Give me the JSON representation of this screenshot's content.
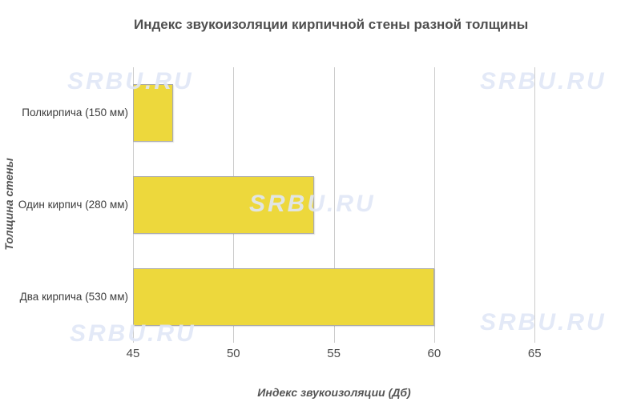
{
  "chart_data": {
    "type": "bar",
    "orientation": "horizontal",
    "title": "Индекс звукоизоляции кирпичной стены разной толщины",
    "xlabel": "Индекс звукоизоляции (Дб)",
    "ylabel": "Толщина стены",
    "categories": [
      "Полкирпича (150 мм)",
      "Один кирпич (280 мм)",
      "Два кирпича (530 мм)"
    ],
    "values": [
      47,
      54,
      60
    ],
    "xticks": [
      45,
      50,
      55,
      60,
      65
    ],
    "xlim": [
      45,
      69.9
    ],
    "grid": true,
    "legend": false,
    "colors": {
      "bar_fill": "#EDD83C",
      "bar_border": "#ABABAB",
      "gridline": "#CCCCCC",
      "title_text": "#4F4F4F",
      "axis_title_text": "#555555",
      "tick_text": "#4A4A4A",
      "background": "#FFFFFF"
    }
  },
  "watermark": {
    "text": "SRBU.RU",
    "color": "#E0E7F7"
  }
}
